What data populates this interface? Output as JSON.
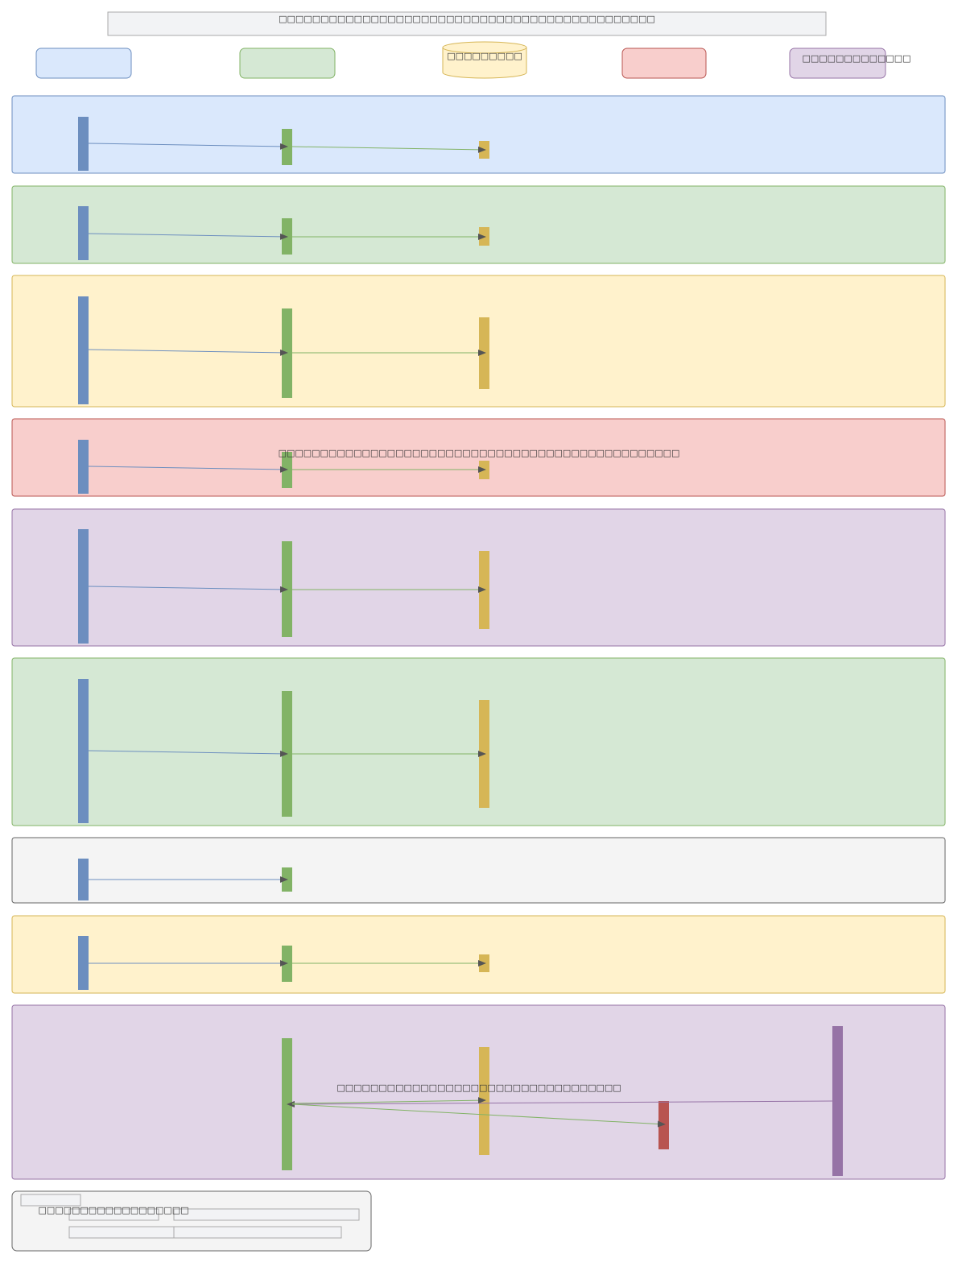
{
  "title": "□□□□□□□□□□□□□□□□□□□□□□□□□□□□□□□□□□□□□□□□□□□□□",
  "participants": {
    "database_label": "□□□□□□□□□",
    "purple_label": "□□□□□□□□□□□□□"
  },
  "notes": {
    "red_section_note": "□□□□□□□□□□□□□□□□□□□□□□□□□□□□□□□□□□□□□□□□□□□□□□□□",
    "purple_section_note": "□□□□□□□□□□□□□□□□□□□□□□□□□□□□□□□□□□"
  },
  "legend": {
    "label": "□□□□□□□□□□□□□□□□□□"
  },
  "colors": {
    "blue": "#6c8ebf",
    "green": "#82b366",
    "yellow": "#d6b656",
    "red": "#b85450",
    "purple": "#9673a6"
  }
}
